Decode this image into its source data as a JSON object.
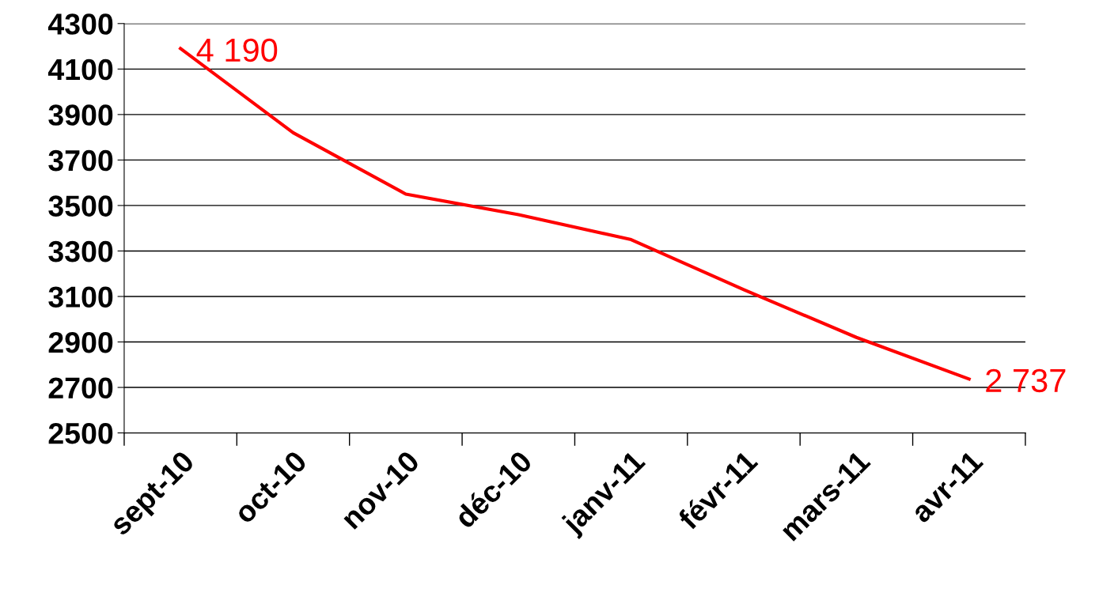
{
  "chart_data": {
    "type": "line",
    "categories": [
      "sept-10",
      "oct-10",
      "nov-10",
      "déc-10",
      "janv-11",
      "févr-11",
      "mars-11",
      "avr-11"
    ],
    "series": [
      {
        "color": "#ff0000",
        "values": [
          4190,
          3820,
          3550,
          3460,
          3350,
          3130,
          2920,
          2737
        ],
        "value_labels": [
          "4 190",
          null,
          null,
          null,
          null,
          null,
          null,
          "2 737"
        ]
      }
    ],
    "ylim": [
      2500,
      4300
    ],
    "yticks": [
      2500,
      2700,
      2900,
      3100,
      3300,
      3500,
      3700,
      3900,
      4100,
      4300
    ],
    "grid": "y",
    "legend": false,
    "marker": "none",
    "line_style": "solid"
  }
}
